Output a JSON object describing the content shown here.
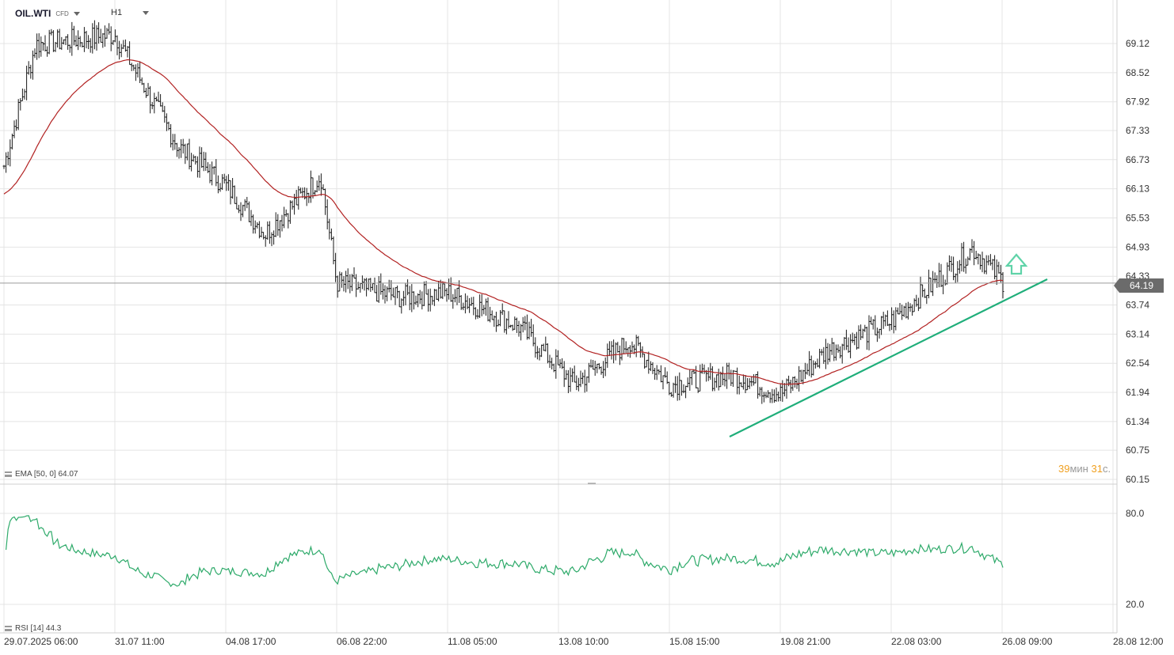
{
  "header": {
    "symbol": "OIL.WTI",
    "instrument_type": "CFD",
    "timeframe": "H1"
  },
  "price_tag": "64.19",
  "timer": {
    "minutes": "39",
    "min_unit": "мин",
    "seconds": "31",
    "sec_unit": "с."
  },
  "indicators": {
    "ema_label": "EMA [50, 0] 64.07",
    "rsi_label": "RSI [14] 44.3"
  },
  "colors": {
    "candles": "#1a1a1a",
    "ema": "#b22222",
    "rsi": "#2eaa6a",
    "trendline": "#1fae7a",
    "arrow": "#5fd3a8",
    "grid": "#e4e4e4",
    "current_price_line": "#9a9a9a"
  },
  "chart_data": [
    {
      "type": "candlestick",
      "title": "OIL.WTI CFD H1",
      "y_axis_ticks": [
        "69.12",
        "68.52",
        "67.92",
        "67.33",
        "66.73",
        "66.13",
        "65.53",
        "64.93",
        "64.33",
        "63.74",
        "63.14",
        "62.54",
        "61.94",
        "61.34",
        "60.75",
        "60.15"
      ],
      "x_axis_ticks": [
        "29.07.2025 06:00",
        "31.07 11:00",
        "04.08 17:00",
        "06.08 22:00",
        "11.08 05:00",
        "13.08 10:00",
        "15.08 15:00",
        "19.08 21:00",
        "22.08 03:00",
        "26.08 09:00",
        "28.08 12:00"
      ],
      "ylim": [
        60.15,
        69.7
      ],
      "current_price": 64.19,
      "approx_close_path": [
        {
          "x": "29.07.2025 06:00",
          "y": 66.6
        },
        {
          "x": "30.07",
          "y": 69.1
        },
        {
          "x": "31.07 11:00",
          "y": 69.3
        },
        {
          "x": "01.08",
          "y": 67.0
        },
        {
          "x": "04.08 17:00",
          "y": 66.2
        },
        {
          "x": "05.08",
          "y": 65.2
        },
        {
          "x": "06.08",
          "y": 66.4
        },
        {
          "x": "06.08 22:00",
          "y": 64.2
        },
        {
          "x": "08.08",
          "y": 63.9
        },
        {
          "x": "11.08 05:00",
          "y": 64.0
        },
        {
          "x": "12.08",
          "y": 63.3
        },
        {
          "x": "13.08 10:00",
          "y": 62.1
        },
        {
          "x": "14.08",
          "y": 63.0
        },
        {
          "x": "15.08 15:00",
          "y": 62.1
        },
        {
          "x": "18.08",
          "y": 62.3
        },
        {
          "x": "19.08 21:00",
          "y": 61.9
        },
        {
          "x": "20.08",
          "y": 62.8
        },
        {
          "x": "22.08 03:00",
          "y": 63.4
        },
        {
          "x": "25.08",
          "y": 64.9
        },
        {
          "x": "26.08 09:00",
          "y": 64.2
        }
      ],
      "series": [
        {
          "name": "EMA [50, 0]",
          "last_value": 64.07
        }
      ],
      "annotations": [
        "rising trendline under recent lows",
        "up arrow"
      ]
    },
    {
      "type": "line",
      "title": "RSI [14]",
      "y_axis_ticks": [
        "80.0",
        "20.0"
      ],
      "ylim": [
        0,
        100
      ],
      "last_value": 44.3
    }
  ]
}
